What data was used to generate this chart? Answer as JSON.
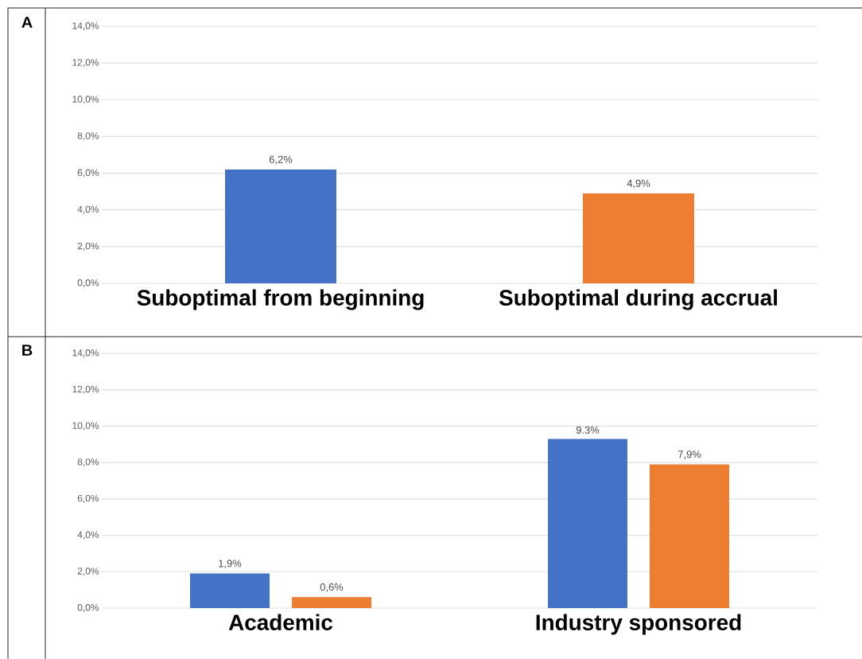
{
  "chart_data": [
    {
      "type": "bar",
      "title": "A",
      "categories": [
        "Suboptimal from beginning",
        "Suboptimal during accrual"
      ],
      "values": [
        6.2,
        4.9
      ],
      "colors": [
        "#4472c4",
        "#ed7d31"
      ],
      "value_labels": [
        "6,2%",
        "4,9%"
      ],
      "ylim": [
        0,
        14
      ],
      "yticks": [
        {
          "value": 0,
          "label": "0,0%"
        },
        {
          "value": 2,
          "label": "2,0%"
        },
        {
          "value": 4,
          "label": "4,0%"
        },
        {
          "value": 6,
          "label": "6,0%"
        },
        {
          "value": 8,
          "label": "8,0%"
        },
        {
          "value": 10,
          "label": "10,0%"
        },
        {
          "value": 12,
          "label": "12,0%"
        },
        {
          "value": 14,
          "label": "14,0%"
        }
      ],
      "grid": "y"
    },
    {
      "type": "bar",
      "title": "B",
      "categories": [
        "Academic",
        "Industry sponsored"
      ],
      "series": [
        {
          "color": "#4472c4",
          "values": [
            1.9,
            9.3
          ],
          "value_labels": [
            "1,9%",
            "9.3%"
          ]
        },
        {
          "color": "#ed7d31",
          "values": [
            0.6,
            7.9
          ],
          "value_labels": [
            "0,6%",
            "7,9%"
          ]
        }
      ],
      "ylim": [
        0,
        14
      ],
      "yticks": [
        {
          "value": 0,
          "label": "0,0%"
        },
        {
          "value": 2,
          "label": "2,0%"
        },
        {
          "value": 4,
          "label": "4,0%"
        },
        {
          "value": 6,
          "label": "6,0%"
        },
        {
          "value": 8,
          "label": "8,0%"
        },
        {
          "value": 10,
          "label": "10,0%"
        },
        {
          "value": 12,
          "label": "12,0%"
        },
        {
          "value": 14,
          "label": "14,0%"
        }
      ],
      "grid": "y"
    }
  ]
}
